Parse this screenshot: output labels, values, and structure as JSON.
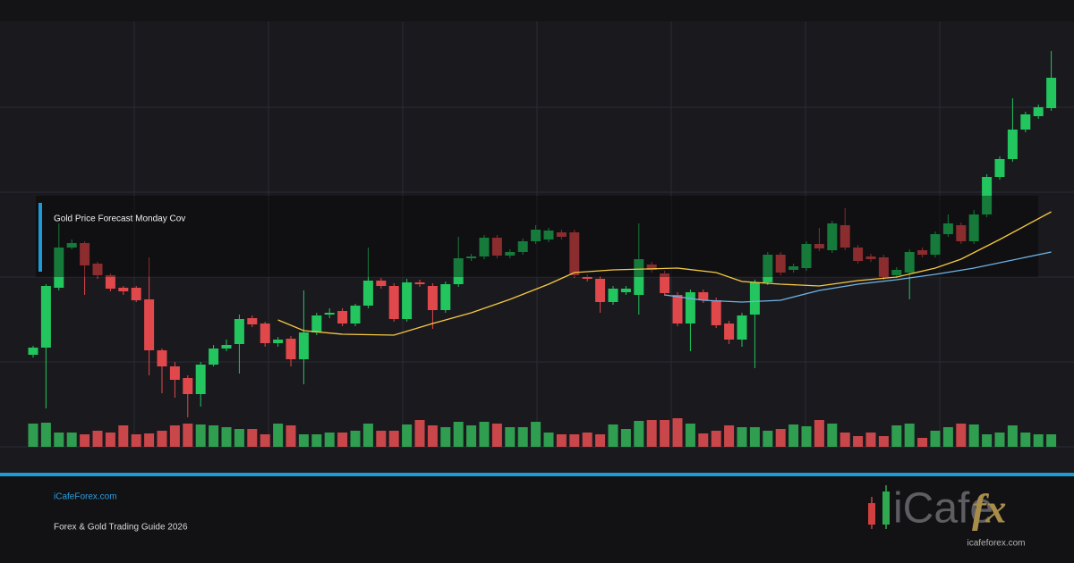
{
  "chart_data": {
    "type": "candlestick",
    "open": [
      103,
      111,
      178,
      223,
      228,
      205,
      192,
      178,
      178,
      165,
      108,
      90,
      77,
      59,
      92,
      110,
      115,
      144,
      138,
      116,
      121,
      98,
      128,
      148,
      152,
      138,
      158,
      186,
      180,
      143,
      184,
      180,
      153,
      182,
      211,
      213,
      234,
      214,
      218,
      230,
      232,
      240,
      240,
      190,
      188,
      162,
      173,
      170,
      204,
      194,
      170,
      138,
      173,
      164,
      138,
      120,
      148,
      184,
      215,
      198,
      200,
      227,
      220,
      248,
      223,
      213,
      212,
      192,
      195,
      220,
      215,
      238,
      248,
      230,
      260,
      302,
      322,
      355,
      370,
      379
    ],
    "high": [
      113,
      182,
      250,
      232,
      230,
      207,
      194,
      180,
      180,
      212,
      110,
      95,
      80,
      95,
      114,
      120,
      148,
      147,
      140,
      123,
      124,
      175,
      150,
      155,
      155,
      160,
      223,
      189,
      183,
      188,
      187,
      183,
      185,
      235,
      216,
      237,
      237,
      221,
      233,
      248,
      245,
      243,
      243,
      193,
      191,
      180,
      180,
      250,
      207,
      197,
      173,
      176,
      176,
      167,
      141,
      150,
      187,
      218,
      218,
      205,
      230,
      245,
      253,
      267,
      226,
      216,
      215,
      201,
      221,
      223,
      241,
      260,
      251,
      265,
      305,
      325,
      390,
      375,
      383,
      443
    ],
    "low": [
      100,
      43,
      175,
      221,
      170,
      188,
      174,
      170,
      162,
      80,
      60,
      55,
      33,
      45,
      90,
      107,
      82,
      134,
      112,
      112,
      90,
      70,
      125,
      144,
      135,
      135,
      155,
      177,
      140,
      140,
      179,
      132,
      150,
      179,
      208,
      210,
      211,
      211,
      215,
      227,
      229,
      232,
      189,
      185,
      150,
      159,
      170,
      148,
      195,
      169,
      135,
      107,
      161,
      133,
      115,
      112,
      88,
      181,
      192,
      195,
      197,
      219,
      217,
      220,
      205,
      207,
      187,
      189,
      165,
      212,
      212,
      235,
      227,
      227,
      257,
      299,
      319,
      352,
      367,
      376
    ],
    "close": [
      111,
      180,
      223,
      228,
      203,
      192,
      177,
      174,
      164,
      108,
      90,
      75,
      59,
      92,
      110,
      114,
      143,
      137,
      116,
      120,
      98,
      128,
      147,
      150,
      138,
      158,
      186,
      180,
      143,
      184,
      182,
      153,
      182,
      211,
      213,
      234,
      214,
      218,
      230,
      243,
      242,
      235,
      192,
      188,
      162,
      177,
      177,
      210,
      198,
      172,
      138,
      173,
      164,
      136,
      120,
      147,
      184,
      215,
      195,
      202,
      227,
      222,
      250,
      223,
      208,
      210,
      190,
      198,
      218,
      215,
      238,
      250,
      230,
      260,
      302,
      322,
      355,
      372,
      380,
      413
    ],
    "volume": [
      26,
      27,
      16,
      16,
      14,
      18,
      16,
      24,
      14,
      15,
      18,
      24,
      26,
      25,
      24,
      22,
      20,
      20,
      14,
      26,
      24,
      14,
      14,
      16,
      16,
      18,
      26,
      18,
      18,
      25,
      30,
      24,
      22,
      28,
      24,
      28,
      26,
      22,
      22,
      28,
      16,
      14,
      14,
      16,
      14,
      25,
      20,
      29,
      30,
      30,
      32,
      26,
      15,
      18,
      24,
      22,
      22,
      18,
      20,
      25,
      23,
      30,
      26,
      16,
      12,
      16,
      12,
      24,
      26,
      10,
      18,
      22,
      26,
      25,
      14,
      16,
      24,
      16,
      14,
      14
    ],
    "up_color": "#22c55e",
    "down_color": "#e0484c",
    "volume_up_color": "#2f9e50",
    "volume_down_color": "#c9474a",
    "series": [
      {
        "color": "#f5c842",
        "x": [
          19,
          21,
          24,
          28,
          31,
          34,
          37,
          40,
          42,
          45,
          50,
          53,
          55,
          58,
          61,
          64,
          67,
          70,
          72,
          75,
          79
        ],
        "values": [
          142,
          130,
          126,
          125,
          138,
          150,
          165,
          182,
          195,
          198,
          200,
          195,
          185,
          182,
          180,
          186,
          190,
          200,
          210,
          232,
          263
        ]
      },
      {
        "color": "#6fb3e8",
        "x": [
          49,
          52,
          55,
          58,
          61,
          64,
          67,
          70,
          73,
          79
        ],
        "values": [
          170,
          164,
          162,
          164,
          175,
          182,
          187,
          193,
          200,
          218
        ]
      }
    ],
    "ylim": [
      0,
      475
    ]
  },
  "overlay_title": "Gold Price Forecast Monday Cov",
  "footer": {
    "site": "iCafeForex.com",
    "tagline": "Forex & Gold Trading Guide 2026"
  },
  "logo": {
    "name": "iCafe",
    "suffix": "fx",
    "url": "icafeforex.com"
  }
}
